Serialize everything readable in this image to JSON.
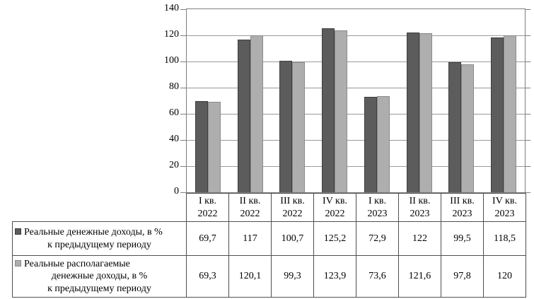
{
  "chart_data": {
    "type": "bar",
    "categories": [
      "I кв. 2022",
      "II кв. 2022",
      "III кв. 2022",
      "IV кв. 2022",
      "I кв. 2023",
      "II кв. 2023",
      "III кв. 2023",
      "IV кв. 2023"
    ],
    "category_lines": [
      [
        "I кв.",
        "2022"
      ],
      [
        "II кв.",
        "2022"
      ],
      [
        "III кв.",
        "2022"
      ],
      [
        "IV кв.",
        "2022"
      ],
      [
        "I кв.",
        "2023"
      ],
      [
        "II кв.",
        "2023"
      ],
      [
        "III кв.",
        "2023"
      ],
      [
        "IV кв.",
        "2023"
      ]
    ],
    "series": [
      {
        "name": "Реальные денежные доходы, в % к предыдущему периоду",
        "label_lines": [
          "Реальные денежные доходы, в %",
          "к предыдущему периоду"
        ],
        "values": [
          69.7,
          117,
          100.7,
          125.2,
          72.9,
          122,
          99.5,
          118.5
        ],
        "display_values": [
          "69,7",
          "117",
          "100,7",
          "125,2",
          "72,9",
          "122",
          "99,5",
          "118,5"
        ],
        "color": "#5c5c5c",
        "border_color": "#3e3e3e"
      },
      {
        "name": "Реальные располагаемые денежные доходы, в % к предыдущему периоду",
        "label_lines": [
          "Реальные располагаемые",
          "денежные доходы, в %",
          "к предыдущему периоду"
        ],
        "values": [
          69.3,
          120.1,
          99.3,
          123.9,
          73.6,
          121.6,
          97.8,
          120
        ],
        "display_values": [
          "69,3",
          "120,1",
          "99,3",
          "123,9",
          "73,6",
          "121,6",
          "97,8",
          "120"
        ],
        "color": "#aeaeae",
        "border_color": "#8a8a8a"
      }
    ],
    "ylim": [
      0,
      140
    ],
    "yticks": [
      0,
      20,
      40,
      60,
      80,
      100,
      120,
      140
    ],
    "ytick_labels": [
      "0",
      "20",
      "40",
      "60",
      "80",
      "100",
      "120",
      "140"
    ],
    "xlabel": "",
    "ylabel": "",
    "grid": true,
    "legend_position": "table-left"
  }
}
